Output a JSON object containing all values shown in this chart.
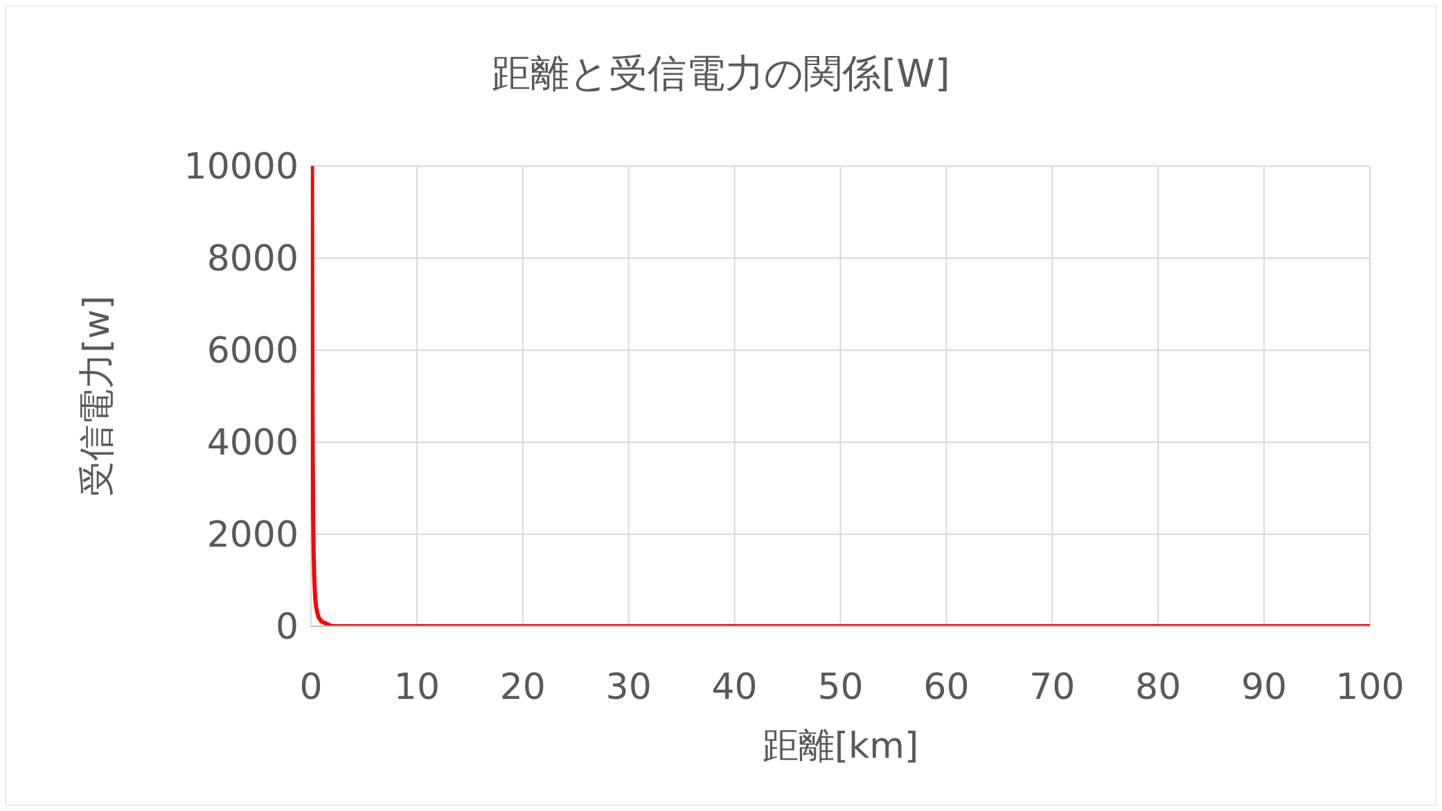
{
  "chart_data": {
    "type": "line",
    "title": "距離と受信電力の関係[W]",
    "xlabel": "距離[km]",
    "ylabel": "受信電力[w]",
    "series": [
      {
        "color": "#ff0000",
        "x": [
          0.1,
          0.12,
          0.15,
          0.2,
          0.25,
          0.3,
          0.4,
          0.5,
          0.7,
          1,
          2,
          3,
          5,
          10,
          20,
          50,
          100
        ],
        "values": [
          10000,
          6900,
          4400,
          2500,
          1600,
          1100,
          600,
          400,
          200,
          100,
          0,
          0,
          0,
          0,
          0,
          0,
          0
        ]
      }
    ],
    "xlim": [
      0,
      100
    ],
    "xticks": [
      0,
      10,
      20,
      30,
      40,
      50,
      60,
      70,
      80,
      90,
      100
    ],
    "ylim": [
      0,
      10000
    ],
    "yticks": [
      0,
      2000,
      4000,
      6000,
      8000,
      10000
    ],
    "grid": true,
    "marker": "none",
    "line_style": "solid",
    "legend": false
  }
}
